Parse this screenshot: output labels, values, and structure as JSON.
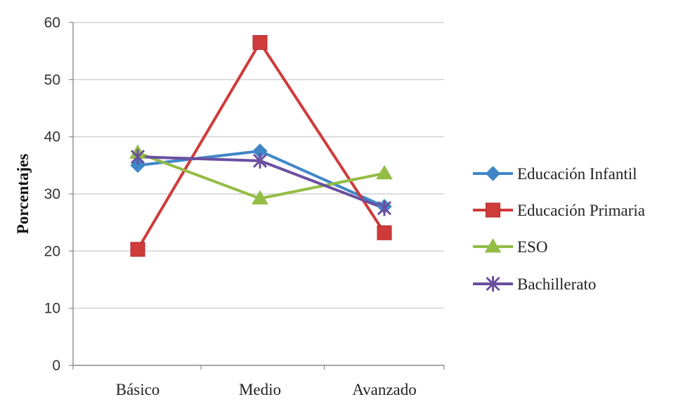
{
  "chart_data": {
    "type": "line",
    "title": "",
    "xlabel": "",
    "ylabel": "Porcentajes",
    "categories": [
      "Básico",
      "Medio",
      "Avanzado"
    ],
    "ylim": [
      0,
      60
    ],
    "yticks": [
      0,
      10,
      20,
      30,
      40,
      50,
      60
    ],
    "grid": true,
    "legend_position": "right",
    "series": [
      {
        "name": "Educación Infantil",
        "values": [
          35.0,
          37.5,
          27.8
        ],
        "color": "#3f87c8",
        "marker": "diamond"
      },
      {
        "name": "Educación Primaria",
        "values": [
          20.3,
          56.5,
          23.2
        ],
        "color": "#cf3b3b",
        "marker": "square"
      },
      {
        "name": "ESO",
        "values": [
          37.2,
          29.2,
          33.6
        ],
        "color": "#93bd45",
        "marker": "triangle"
      },
      {
        "name": "Bachillerato",
        "values": [
          36.5,
          35.8,
          27.5
        ],
        "color": "#6a4fa0",
        "marker": "x"
      }
    ]
  }
}
